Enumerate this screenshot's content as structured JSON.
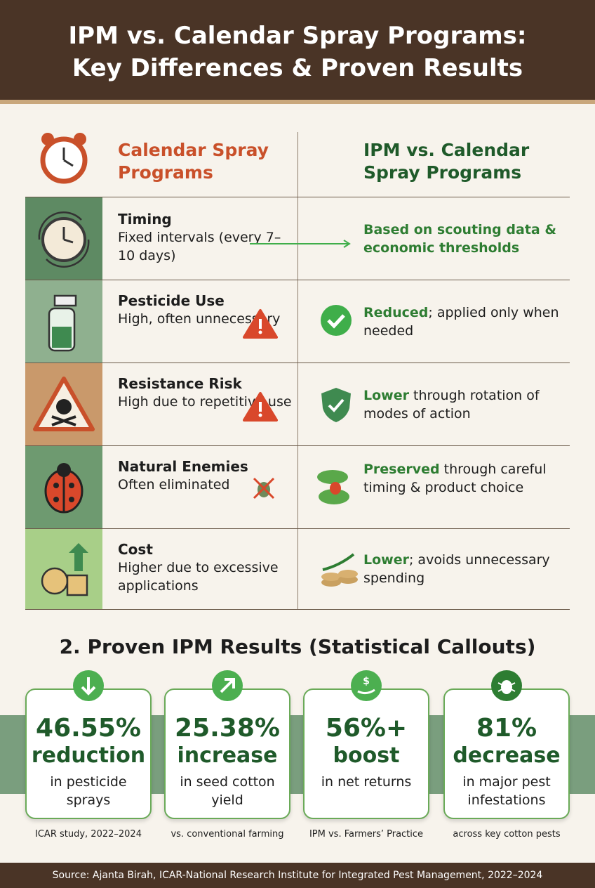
{
  "header": {
    "title_lines": [
      "IPM vs. Calendar Spray Programs:",
      "Key Differences & Proven Results"
    ]
  },
  "table": {
    "headers": [
      "Calendar Spray Programs",
      "IPM  vs. Calendar Spray Programs"
    ],
    "rows": [
      {
        "label": "Timing",
        "left": "Fixed intervals (every 7–10 days)",
        "right_bold": "Based on scouting data & economic thresholds"
      },
      {
        "label": "Pesticide Use",
        "left": "High, often unnecessary",
        "right_bold": "Reduced",
        "right_rest": "; applied only when needed"
      },
      {
        "label": "Resistance Risk",
        "left": "High due to repetitive use",
        "right_bold": "Lower",
        "right_rest": " through rotation of modes of action"
      },
      {
        "label": "Natural Enemies",
        "left": "Often eliminated",
        "right_bold": "Preserved",
        "right_rest": " through careful timing & product choice"
      },
      {
        "label": "Cost",
        "left": "Higher due to excessive applications",
        "right_bold": "Lower",
        "right_rest": "; avoids unnecessary spending"
      }
    ]
  },
  "results": {
    "title": "2. Proven IPM Results (Statistical Callouts)",
    "cards": [
      {
        "value": "46.55%",
        "word": "reduction",
        "description": "in pesticide sprays",
        "note": "ICAR study, 2022–2024"
      },
      {
        "value": "25.38%",
        "word": "increase",
        "description": "in seed cotton yield",
        "note": "vs. conventional farming"
      },
      {
        "value": "56%+",
        "word": "boost",
        "description": "in net returns",
        "note": "IPM vs. Farmers’ Practice"
      },
      {
        "value": "81%",
        "word": "decrease",
        "description": "in major pest infestations",
        "note": "across key cotton pests"
      }
    ]
  },
  "footer": {
    "source": "Source: Ajanta Birah, ICAR-National Research Institute for Integrated Pest Management, 2022–2024"
  }
}
